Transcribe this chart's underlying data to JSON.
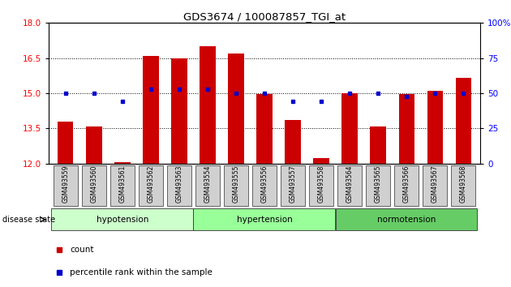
{
  "title": "GDS3674 / 100087857_TGI_at",
  "samples": [
    "GSM493559",
    "GSM493560",
    "GSM493561",
    "GSM493562",
    "GSM493563",
    "GSM493554",
    "GSM493555",
    "GSM493556",
    "GSM493557",
    "GSM493558",
    "GSM493564",
    "GSM493565",
    "GSM493566",
    "GSM493567",
    "GSM493568"
  ],
  "counts": [
    13.8,
    13.6,
    12.05,
    16.6,
    16.5,
    17.0,
    16.7,
    14.95,
    13.85,
    12.25,
    15.0,
    13.6,
    14.95,
    15.1,
    15.65
  ],
  "percentiles": [
    50,
    50,
    44,
    53,
    53,
    53,
    50,
    50,
    44,
    44,
    50,
    50,
    48,
    50,
    50
  ],
  "ylim_left": [
    12,
    18
  ],
  "ylim_right": [
    0,
    100
  ],
  "yticks_left": [
    12,
    13.5,
    15,
    16.5,
    18
  ],
  "yticks_right": [
    0,
    25,
    50,
    75,
    100
  ],
  "bar_color": "#cc0000",
  "dot_color": "#0000cc",
  "group_labels": [
    "hypotension",
    "hypertension",
    "normotension"
  ],
  "group_starts": [
    0,
    5,
    10
  ],
  "group_ends": [
    5,
    10,
    15
  ],
  "group_colors": [
    "#ccffcc",
    "#99ff99",
    "#66cc66"
  ],
  "disease_state_label": "disease state",
  "legend_count": "count",
  "legend_percentile": "percentile rank within the sample"
}
